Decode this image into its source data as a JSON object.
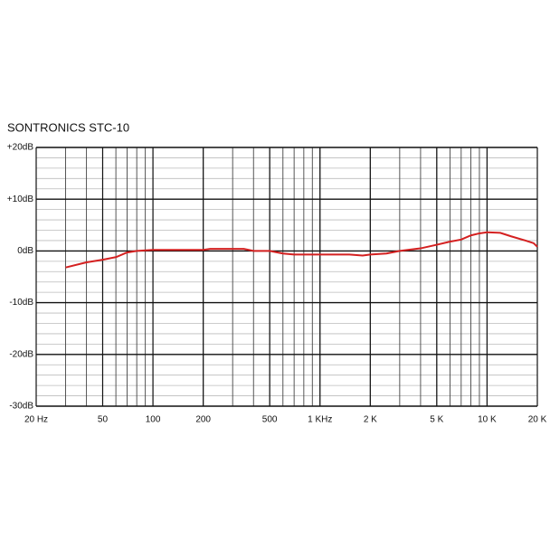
{
  "chart_data": {
    "type": "line",
    "title": "SONTRONICS STC-10",
    "log_x": true,
    "grid": true,
    "xlim": [
      20,
      20000
    ],
    "ylim": [
      -30,
      20
    ],
    "xticks": [
      {
        "value": 20,
        "label": "20 Hz"
      },
      50,
      100,
      200,
      500,
      {
        "value": 1000,
        "label": "1 KHz"
      },
      {
        "value": 2000,
        "label": "2 K"
      },
      {
        "value": 5000,
        "label": "5 K"
      },
      {
        "value": 10000,
        "label": "10 K"
      },
      {
        "value": 20000,
        "label": "20 K"
      }
    ],
    "yticks": [
      {
        "value": 20,
        "label": "+20dB"
      },
      {
        "value": 10,
        "label": "+10dB"
      },
      {
        "value": 0,
        "label": "0dB"
      },
      {
        "value": -10,
        "label": "-10dB"
      },
      {
        "value": -20,
        "label": "-20dB"
      },
      {
        "value": -30,
        "label": "-30dB"
      }
    ],
    "x": [
      30,
      40,
      50,
      60,
      70,
      80,
      100,
      200,
      220,
      350,
      400,
      500,
      600,
      700,
      1000,
      1500,
      1800,
      2000,
      2500,
      3000,
      4000,
      5000,
      6000,
      7000,
      8000,
      9000,
      10000,
      12000,
      14000,
      17000,
      19000,
      20000
    ],
    "series": [
      {
        "color": "#d42020",
        "values": [
          -3.2,
          -2.2,
          -1.7,
          -1.2,
          -0.3,
          0,
          0.2,
          0.2,
          0.4,
          0.4,
          0,
          0,
          -0.5,
          -0.7,
          -0.7,
          -0.7,
          -0.9,
          -0.7,
          -0.5,
          0,
          0.5,
          1.2,
          1.8,
          2.2,
          3.0,
          3.4,
          3.6,
          3.5,
          2.8,
          2.0,
          1.5,
          0.8
        ]
      }
    ]
  }
}
